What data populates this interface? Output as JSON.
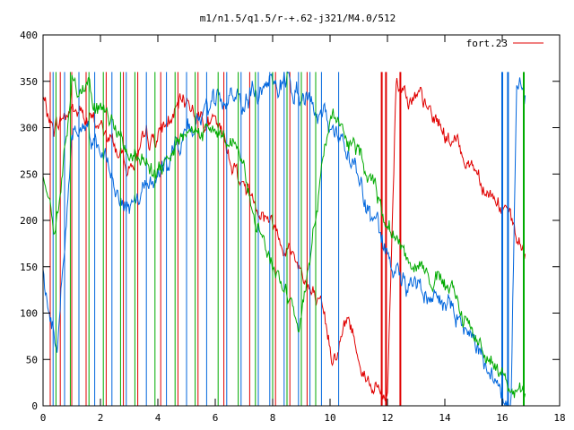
{
  "chart_data": {
    "type": "line",
    "title": "m1/n1.5/q1.5/r-+.62-j321/M4.0/512",
    "xlabel": "",
    "ylabel": "",
    "xlim": [
      0,
      18
    ],
    "ylim": [
      0,
      400
    ],
    "x_ticks": [
      "0",
      "2",
      "4",
      "6",
      "8",
      "10",
      "12",
      "14",
      "16",
      "18"
    ],
    "y_ticks": [
      "0",
      "50",
      "100",
      "150",
      "200",
      "250",
      "300",
      "350",
      "400"
    ],
    "legend": {
      "position": "top-right",
      "entries": [
        {
          "label": "fort.23",
          "color": "#e00000"
        }
      ]
    },
    "grid": false,
    "wrap_max": 360,
    "series": [
      {
        "color": "#e00000",
        "x_end": 16.8,
        "trend": [
          [
            0,
            330
          ],
          [
            0.3,
            300
          ],
          [
            1,
            320
          ],
          [
            2,
            300
          ],
          [
            3,
            260
          ],
          [
            4,
            290
          ],
          [
            5,
            330
          ],
          [
            6,
            300
          ],
          [
            7,
            240
          ],
          [
            8,
            200
          ],
          [
            9,
            150
          ],
          [
            9.6,
            100
          ],
          [
            10.1,
            55
          ],
          [
            10.6,
            95
          ],
          [
            11.2,
            40
          ],
          [
            11.8,
            10
          ],
          [
            12,
            10
          ],
          [
            12.3,
            355
          ],
          [
            13,
            330
          ],
          [
            14,
            295
          ],
          [
            15,
            260
          ],
          [
            16,
            215
          ],
          [
            16.6,
            170
          ],
          [
            16.8,
            163
          ]
        ],
        "noise": 10,
        "spikes": [
          0.25,
          0.6,
          1.0,
          1.5,
          2.2,
          2.8,
          3.3,
          4.1,
          4.7,
          5.4,
          6.3,
          7.2,
          8.1,
          8.6,
          9.2,
          11.8,
          11.95,
          12.45
        ]
      },
      {
        "color": "#0066dd",
        "x_end": 16.8,
        "trend": [
          [
            0,
            140
          ],
          [
            0.5,
            60
          ],
          [
            1,
            300
          ],
          [
            2,
            280
          ],
          [
            3,
            220
          ],
          [
            4,
            260
          ],
          [
            5,
            300
          ],
          [
            6,
            320
          ],
          [
            7,
            330
          ],
          [
            8,
            360
          ],
          [
            9,
            340
          ],
          [
            10,
            300
          ],
          [
            10.6,
            270
          ],
          [
            11,
            250
          ],
          [
            11.5,
            200
          ],
          [
            12,
            150
          ],
          [
            12.5,
            130
          ],
          [
            13,
            130
          ],
          [
            14,
            110
          ],
          [
            15,
            70
          ],
          [
            16,
            25
          ],
          [
            16.3,
            0
          ],
          [
            16.5,
            355
          ],
          [
            16.8,
            335
          ]
        ],
        "noise": 12,
        "spikes": [
          0.35,
          0.75,
          1.25,
          1.8,
          2.4,
          2.9,
          3.6,
          4.3,
          5.0,
          5.7,
          6.4,
          6.9,
          7.5,
          7.9,
          8.4,
          8.9,
          9.3,
          9.7,
          10.3,
          16.0,
          16.2
        ]
      },
      {
        "color": "#00aa00",
        "x_end": 16.8,
        "trend": [
          [
            0,
            250
          ],
          [
            0.4,
            180
          ],
          [
            1,
            350
          ],
          [
            2,
            320
          ],
          [
            3,
            280
          ],
          [
            4,
            240
          ],
          [
            5,
            290
          ],
          [
            6,
            300
          ],
          [
            7,
            260
          ],
          [
            8,
            150
          ],
          [
            9,
            100
          ],
          [
            10,
            320
          ],
          [
            10.6,
            280
          ],
          [
            11,
            270
          ],
          [
            11.5,
            250
          ],
          [
            12,
            200
          ],
          [
            12.5,
            170
          ],
          [
            13,
            160
          ],
          [
            14,
            130
          ],
          [
            15,
            80
          ],
          [
            16,
            35
          ],
          [
            16.5,
            15
          ],
          [
            16.8,
            5
          ]
        ],
        "noise": 10,
        "spikes": [
          0.45,
          0.95,
          1.6,
          2.1,
          2.7,
          3.2,
          3.9,
          4.6,
          5.3,
          6.1,
          6.8,
          7.4,
          8.0,
          8.5,
          9.0,
          9.5,
          16.75
        ]
      }
    ]
  }
}
